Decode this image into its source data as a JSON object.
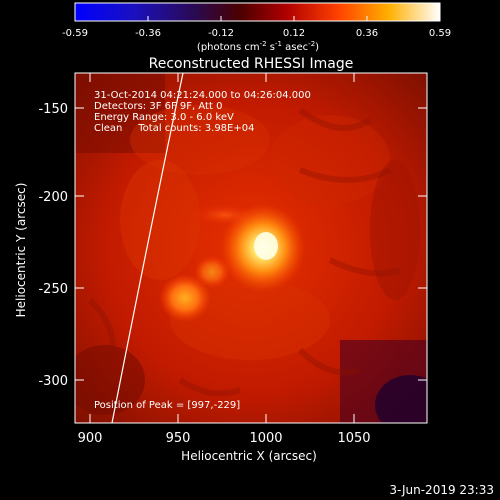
{
  "colorbar": {
    "tick_labels": [
      "-0.59",
      "-0.36",
      "-0.12",
      "0.12",
      "0.36",
      "0.59"
    ],
    "unit_main": "(photons cm",
    "unit_exp1": "-2",
    "unit_mid": " s",
    "unit_exp2": "-1",
    "unit_mid2": " asec",
    "unit_exp3": "-2",
    "unit_end": ")"
  },
  "plot": {
    "title": "Reconstructed RHESSI Image",
    "xlabel": "Heliocentric X (arcsec)",
    "ylabel": "Heliocentric Y (arcsec)",
    "x_ticks": [
      "900",
      "950",
      "1000",
      "1050"
    ],
    "y_ticks": [
      "-150",
      "-200",
      "-250",
      "-300"
    ],
    "annotation_time": "31-Oct-2014 04:21:24.000 to 04:26:04.000",
    "annotation_detectors": "Detectors: 3F 6F 9F, Att 0",
    "annotation_energy": "Energy Range: 3.0 - 6.0 keV",
    "annotation_clean": "Clean     Total counts: 3.98E+04",
    "peak_text": "Position of Peak = [997,-229]"
  },
  "footer": {
    "date": "3-Jun-2019 23:33"
  },
  "colors": {
    "background": "#000000",
    "image_base": "#a81200",
    "peak": "#ffffe0"
  }
}
